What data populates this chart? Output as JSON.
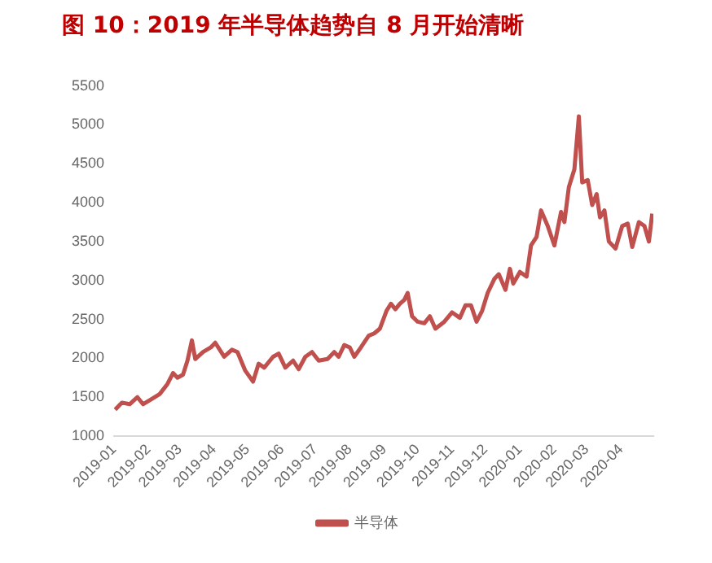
{
  "chart_data": {
    "type": "line",
    "title": "图 10：2019 年半导体趋势自 8 月开始清晰",
    "x": [
      "2019-01-02",
      "2019-01-08",
      "2019-01-15",
      "2019-01-22",
      "2019-01-27",
      "2019-02-03",
      "2019-02-11",
      "2019-02-18",
      "2019-02-23",
      "2019-02-27",
      "2019-03-04",
      "2019-03-08",
      "2019-03-12",
      "2019-03-15",
      "2019-03-22",
      "2019-03-29",
      "2019-04-02",
      "2019-04-10",
      "2019-04-17",
      "2019-04-22",
      "2019-04-29",
      "2019-05-06",
      "2019-05-11",
      "2019-05-16",
      "2019-05-24",
      "2019-05-29",
      "2019-06-04",
      "2019-06-11",
      "2019-06-16",
      "2019-06-22",
      "2019-06-28",
      "2019-07-04",
      "2019-07-12",
      "2019-07-18",
      "2019-07-22",
      "2019-07-27",
      "2019-08-01",
      "2019-08-05",
      "2019-08-11",
      "2019-08-18",
      "2019-08-23",
      "2019-08-28",
      "2019-09-03",
      "2019-09-07",
      "2019-09-11",
      "2019-09-15",
      "2019-09-19",
      "2019-09-22",
      "2019-09-26",
      "2019-10-01",
      "2019-10-07",
      "2019-10-12",
      "2019-10-17",
      "2019-10-25",
      "2019-11-01",
      "2019-11-08",
      "2019-11-13",
      "2019-11-18",
      "2019-11-23",
      "2019-11-28",
      "2019-12-03",
      "2019-12-09",
      "2019-12-13",
      "2019-12-19",
      "2019-12-23",
      "2019-12-26",
      "2020-01-01",
      "2020-01-07",
      "2020-01-11",
      "2020-01-16",
      "2020-01-20",
      "2020-01-26",
      "2020-02-01",
      "2020-02-07",
      "2020-02-10",
      "2020-02-14",
      "2020-02-19",
      "2020-02-23",
      "2020-02-26",
      "2020-03-02",
      "2020-03-06",
      "2020-03-10",
      "2020-03-13",
      "2020-03-17",
      "2020-03-21",
      "2020-03-27",
      "2020-04-02",
      "2020-04-07",
      "2020-04-11",
      "2020-04-17",
      "2020-04-22",
      "2020-04-26",
      "2020-04-29"
    ],
    "series": [
      {
        "name": "半导体",
        "color": "#c0504d",
        "values": [
          1340,
          1430,
          1410,
          1500,
          1410,
          1470,
          1540,
          1670,
          1810,
          1750,
          1790,
          1970,
          2230,
          1990,
          2080,
          2140,
          2200,
          2020,
          2110,
          2080,
          1840,
          1700,
          1930,
          1880,
          2020,
          2060,
          1880,
          1970,
          1860,
          2020,
          2080,
          1970,
          1990,
          2080,
          2020,
          2170,
          2140,
          2020,
          2140,
          2290,
          2320,
          2380,
          2610,
          2700,
          2630,
          2700,
          2750,
          2840,
          2540,
          2470,
          2450,
          2540,
          2380,
          2470,
          2590,
          2520,
          2680,
          2680,
          2470,
          2610,
          2840,
          3020,
          3080,
          2880,
          3150,
          2960,
          3110,
          3050,
          3450,
          3560,
          3900,
          3700,
          3450,
          3880,
          3750,
          4200,
          4430,
          5110,
          4260,
          4290,
          3970,
          4110,
          3810,
          3900,
          3500,
          3410,
          3700,
          3730,
          3430,
          3750,
          3700,
          3500,
          3860
        ]
      }
    ],
    "xlim": [
      "2019-01-01",
      "2020-04-30"
    ],
    "xticks": [
      {
        "value": "2019-01-01",
        "label": "2019-01"
      },
      {
        "value": "2019-02-01",
        "label": "2019-02"
      },
      {
        "value": "2019-03-01",
        "label": "2019-03"
      },
      {
        "value": "2019-04-01",
        "label": "2019-04"
      },
      {
        "value": "2019-05-01",
        "label": "2019-05"
      },
      {
        "value": "2019-06-01",
        "label": "2019-06"
      },
      {
        "value": "2019-07-01",
        "label": "2019-07"
      },
      {
        "value": "2019-08-01",
        "label": "2019-08"
      },
      {
        "value": "2019-09-01",
        "label": "2019-09"
      },
      {
        "value": "2019-10-01",
        "label": "2019-10"
      },
      {
        "value": "2019-11-01",
        "label": "2019-11"
      },
      {
        "value": "2019-12-01",
        "label": "2019-12"
      },
      {
        "value": "2020-01-01",
        "label": "2020-01"
      },
      {
        "value": "2020-02-01",
        "label": "2020-02"
      },
      {
        "value": "2020-03-01",
        "label": "2020-03"
      },
      {
        "value": "2020-04-01",
        "label": "2020-04"
      }
    ],
    "ylim": [
      1000,
      5500
    ],
    "yticks": [
      1000,
      1500,
      2000,
      2500,
      3000,
      3500,
      4000,
      4500,
      5000,
      5500
    ],
    "grid": false,
    "legend": "bottom",
    "marker": "none",
    "line_style": "solid"
  }
}
